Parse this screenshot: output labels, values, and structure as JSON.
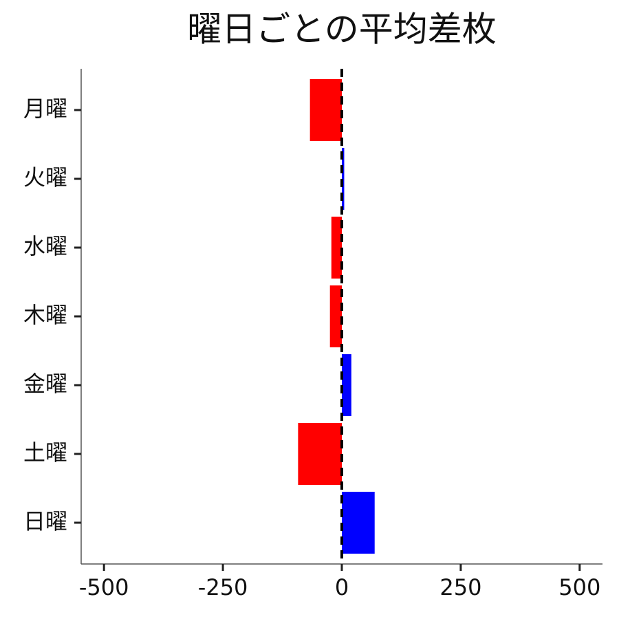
{
  "chart_data": {
    "type": "barh",
    "title": "曜日ごとの平均差枚",
    "categories": [
      "月曜",
      "火曜",
      "水曜",
      "木曜",
      "金曜",
      "土曜",
      "日曜"
    ],
    "values": [
      -67,
      5,
      -22,
      -25,
      20,
      -92,
      69
    ],
    "colors": [
      "#ff0000",
      "#0000ff",
      "#ff0000",
      "#ff0000",
      "#0000ff",
      "#ff0000",
      "#0000ff"
    ],
    "xlim": [
      -548,
      548
    ],
    "xticks": [
      -500,
      -250,
      0,
      250,
      500
    ],
    "vline": 0,
    "grid": false
  }
}
